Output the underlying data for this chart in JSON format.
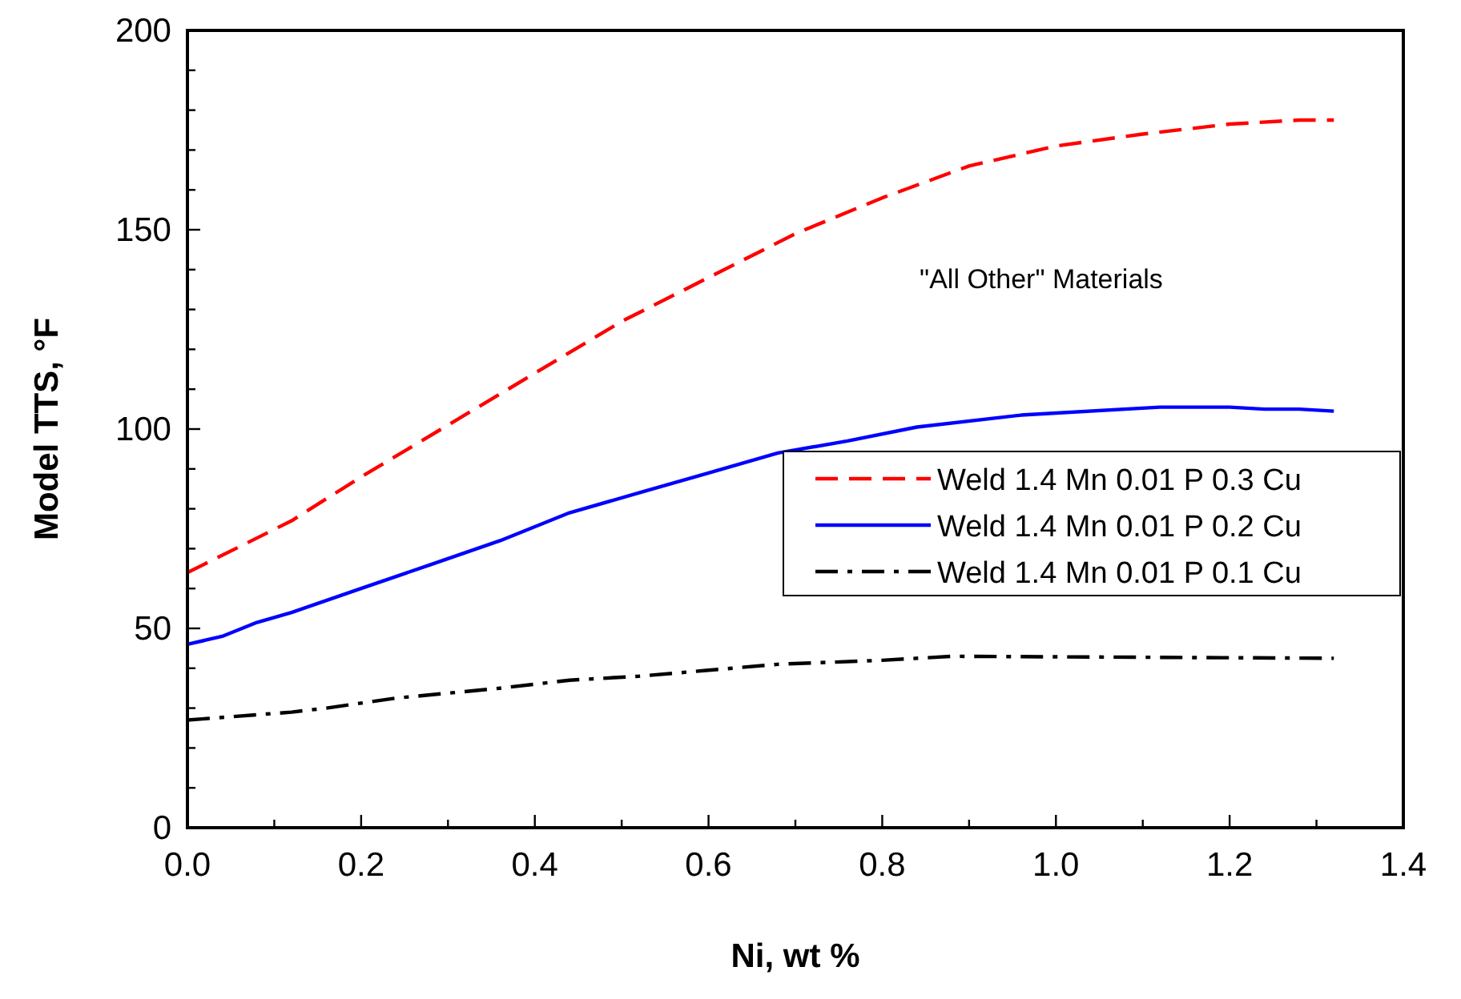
{
  "chart_data": {
    "type": "line",
    "xlabel": "Ni, wt %",
    "ylabel": "Model TTS, °F",
    "xlim": [
      0,
      1.4
    ],
    "ylim": [
      0,
      200
    ],
    "xticks": [
      {
        "value": 0,
        "label": "0.0"
      },
      {
        "value": 0.1,
        "label": null
      },
      0.2,
      {
        "value": 0.3,
        "label": null
      },
      0.4,
      {
        "value": 0.5,
        "label": null
      },
      0.6,
      {
        "value": 0.7,
        "label": null
      },
      0.8,
      {
        "value": 0.9,
        "label": null
      },
      {
        "value": 1.0,
        "label": "1.0"
      },
      {
        "value": 1.1,
        "label": null
      },
      1.2,
      {
        "value": 1.3,
        "label": null
      },
      1.4
    ],
    "yticks": [
      0,
      {
        "value": 10,
        "label": null
      },
      {
        "value": 20,
        "label": null
      },
      {
        "value": 30,
        "label": null
      },
      {
        "value": 40,
        "label": null
      },
      50,
      {
        "value": 60,
        "label": null
      },
      {
        "value": 70,
        "label": null
      },
      {
        "value": 80,
        "label": null
      },
      {
        "value": 90,
        "label": null
      },
      100,
      {
        "value": 110,
        "label": null
      },
      {
        "value": 120,
        "label": null
      },
      {
        "value": 130,
        "label": null
      },
      {
        "value": 140,
        "label": null
      },
      150,
      {
        "value": 160,
        "label": null
      },
      {
        "value": 170,
        "label": null
      },
      {
        "value": 180,
        "label": null
      },
      {
        "value": 190,
        "label": null
      },
      200
    ],
    "grid": false,
    "legend": "right",
    "marker": "none",
    "annotations": [
      "\"All Other\" Materials"
    ],
    "series": [
      {
        "name": "Weld 1.4 Mn 0.01 P 0.3 Cu",
        "color": "#ff0000",
        "line_style": "dashed",
        "x": [
          0,
          0.12,
          0.2,
          0.3,
          0.4,
          0.5,
          0.6,
          0.7,
          0.8,
          0.9,
          1.0,
          1.1,
          1.2,
          1.28,
          1.32
        ],
        "values": [
          64,
          77,
          88,
          101,
          114,
          127,
          138,
          149,
          158,
          166,
          171,
          174,
          176.5,
          177.5,
          177.5
        ]
      },
      {
        "name": "Weld 1.4 Mn 0.01 P 0.2 Cu",
        "color": "#0000ff",
        "line_style": "solid",
        "x": [
          0,
          0.04,
          0.08,
          0.12,
          0.2,
          0.28,
          0.36,
          0.44,
          0.52,
          0.6,
          0.68,
          0.76,
          0.84,
          0.96,
          1.12,
          1.2,
          1.24,
          1.28,
          1.32
        ],
        "values": [
          46,
          48,
          51.5,
          54,
          60,
          66,
          72,
          79,
          84,
          89,
          94,
          97,
          100.5,
          103.5,
          105.5,
          105.5,
          105,
          105,
          104.5
        ]
      },
      {
        "name": "Weld 1.4 Mn 0.01 P 0.1 Cu",
        "color": "#000000",
        "line_style": "dashdot",
        "x": [
          0,
          0.12,
          0.16,
          0.24,
          0.36,
          0.44,
          0.52,
          0.6,
          0.68,
          0.8,
          0.88,
          1.32
        ],
        "values": [
          27,
          29,
          30,
          32.5,
          35,
          37,
          38,
          39.5,
          41,
          42,
          43,
          42.5
        ]
      }
    ]
  }
}
